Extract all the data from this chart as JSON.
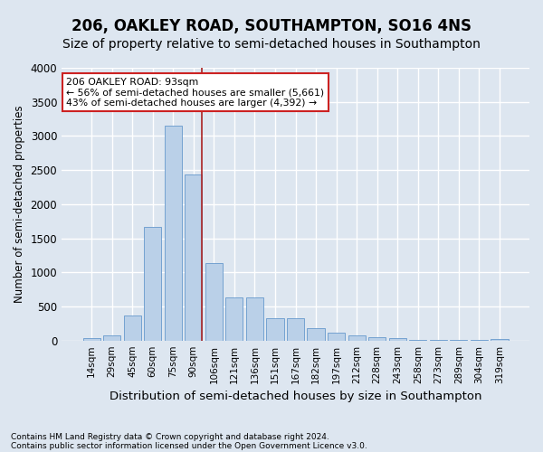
{
  "title": "206, OAKLEY ROAD, SOUTHAMPTON, SO16 4NS",
  "subtitle": "Size of property relative to semi-detached houses in Southampton",
  "xlabel": "Distribution of semi-detached houses by size in Southampton",
  "ylabel": "Number of semi-detached properties",
  "footnote1": "Contains HM Land Registry data © Crown copyright and database right 2024.",
  "footnote2": "Contains public sector information licensed under the Open Government Licence v3.0.",
  "categories": [
    "14sqm",
    "29sqm",
    "45sqm",
    "60sqm",
    "75sqm",
    "90sqm",
    "106sqm",
    "121sqm",
    "136sqm",
    "151sqm",
    "167sqm",
    "182sqm",
    "197sqm",
    "212sqm",
    "228sqm",
    "243sqm",
    "258sqm",
    "273sqm",
    "289sqm",
    "304sqm",
    "319sqm"
  ],
  "values": [
    30,
    80,
    370,
    1670,
    3150,
    2430,
    1140,
    630,
    630,
    330,
    330,
    175,
    110,
    70,
    50,
    35,
    15,
    10,
    10,
    10,
    25
  ],
  "bar_color": "#bad0e8",
  "bar_edge_color": "#6699cc",
  "vline_x": 5.42,
  "vline_color": "#aa2222",
  "annotation_text": "206 OAKLEY ROAD: 93sqm\n← 56% of semi-detached houses are smaller (5,661)\n43% of semi-detached houses are larger (4,392) →",
  "annotation_box_color": "white",
  "annotation_box_edge": "#cc2222",
  "ylim": [
    0,
    4000
  ],
  "yticks": [
    0,
    500,
    1000,
    1500,
    2000,
    2500,
    3000,
    3500,
    4000
  ],
  "background_color": "#dde6f0",
  "grid_color": "white",
  "title_fontsize": 12,
  "subtitle_fontsize": 10,
  "footnote_fontsize": 6.5,
  "ylabel_fontsize": 8.5,
  "xlabel_fontsize": 9.5,
  "tick_fontsize": 7.5,
  "ytick_fontsize": 8.5
}
